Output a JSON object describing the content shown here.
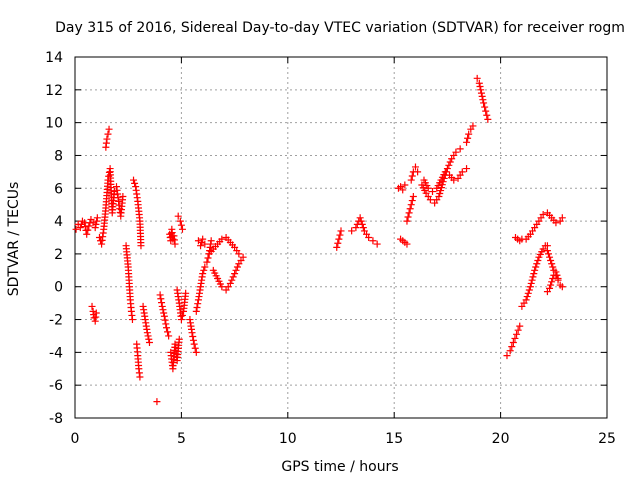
{
  "chart_data": {
    "type": "scatter",
    "title": "Day 315 of 2016, Sidereal Day-to-day VTEC variation (SDTVAR) for receiver rogm",
    "xlabel": "GPS time / hours",
    "ylabel": "SDTVAR / TECUs",
    "xlim": [
      0,
      25
    ],
    "ylim": [
      -8,
      14
    ],
    "xticks": [
      0,
      5,
      10,
      15,
      20,
      25
    ],
    "xtick_labels": [
      "0",
      "5",
      "10",
      "15",
      "20",
      "25"
    ],
    "yticks": [
      -8,
      -6,
      -4,
      -2,
      0,
      2,
      4,
      6,
      8,
      10,
      12,
      14
    ],
    "ytick_labels": [
      "-8",
      "-6",
      "-4",
      "-2",
      "0",
      "2",
      "4",
      "6",
      "8",
      "10",
      "12",
      "14"
    ],
    "grid": true,
    "marker": "plus",
    "color": "#ff0000",
    "series": [
      {
        "name": "SDTVAR",
        "segments": [
          {
            "x": [
              0.05,
              0.15,
              0.25,
              0.35,
              0.45,
              0.55,
              0.65,
              0.75,
              0.85,
              0.95,
              1.05
            ],
            "y": [
              3.5,
              3.8,
              3.6,
              4.0,
              3.9,
              3.2,
              3.7,
              4.1,
              3.9,
              3.6,
              4.2
            ]
          },
          {
            "x": [
              0.8,
              0.85,
              0.9,
              0.95,
              1.0
            ],
            "y": [
              -1.2,
              -1.5,
              -1.9,
              -2.1,
              -1.6
            ]
          },
          {
            "x": [
              1.15,
              1.25,
              1.35,
              1.45,
              1.55,
              1.65,
              1.75,
              1.85,
              1.95,
              2.05,
              2.15,
              2.25
            ],
            "y": [
              3.0,
              2.6,
              3.5,
              4.8,
              6.5,
              7.2,
              4.5,
              5.8,
              6.1,
              5.2,
              4.3,
              5.5
            ]
          },
          {
            "x": [
              1.45,
              1.5,
              1.55,
              1.6
            ],
            "y": [
              8.5,
              9.0,
              9.3,
              9.6
            ]
          },
          {
            "x": [
              2.4,
              2.5,
              2.55,
              2.6,
              2.65,
              2.7
            ],
            "y": [
              2.5,
              1.2,
              0.2,
              -0.8,
              -1.5,
              -2.0
            ]
          },
          {
            "x": [
              2.75,
              2.85,
              2.95,
              3.05,
              3.1
            ],
            "y": [
              6.5,
              6.1,
              5.2,
              4.0,
              2.5
            ]
          },
          {
            "x": [
              2.9,
              2.95,
              3.0,
              3.05
            ],
            "y": [
              -3.5,
              -4.2,
              -5.0,
              -5.5
            ]
          },
          {
            "x": [
              3.2,
              3.3,
              3.4,
              3.5
            ],
            "y": [
              -1.2,
              -2.0,
              -2.8,
              -3.4
            ]
          },
          {
            "x": [
              3.85
            ],
            "y": [
              -7.0
            ]
          },
          {
            "x": [
              4.0,
              4.1,
              4.2,
              4.3,
              4.4
            ],
            "y": [
              -0.5,
              -1.2,
              -1.8,
              -2.5,
              -3.0
            ]
          },
          {
            "x": [
              4.45,
              4.5,
              4.55,
              4.6,
              4.65,
              4.7
            ],
            "y": [
              3.2,
              2.8,
              3.5,
              2.9,
              3.1,
              2.6
            ]
          },
          {
            "x": [
              4.5,
              4.6,
              4.7,
              4.8,
              4.9
            ],
            "y": [
              -4.0,
              -5.0,
              -3.5,
              -4.5,
              -3.2
            ]
          },
          {
            "x": [
              4.85,
              4.95,
              5.05
            ],
            "y": [
              4.3,
              4.0,
              3.5
            ]
          },
          {
            "x": [
              4.8,
              4.9,
              5.0,
              5.1,
              5.2
            ],
            "y": [
              -0.2,
              -1.0,
              -2.0,
              -1.5,
              -0.4
            ]
          },
          {
            "x": [
              5.4,
              5.5,
              5.6,
              5.7
            ],
            "y": [
              -2.0,
              -2.8,
              -3.5,
              -4.0
            ]
          },
          {
            "x": [
              5.7,
              5.8,
              5.9,
              6.0,
              6.1,
              6.2,
              6.3,
              6.4
            ],
            "y": [
              -1.5,
              -0.8,
              0.0,
              0.8,
              1.2,
              1.5,
              2.0,
              2.8
            ]
          },
          {
            "x": [
              5.8,
              5.9,
              6.0,
              6.1
            ],
            "y": [
              2.8,
              2.5,
              2.9,
              2.6
            ]
          },
          {
            "x": [
              6.3,
              6.5,
              6.7,
              6.9,
              7.1,
              7.3,
              7.5,
              7.7
            ],
            "y": [
              2.0,
              2.3,
              2.6,
              2.9,
              3.0,
              2.7,
              2.4,
              2.0
            ]
          },
          {
            "x": [
              6.5,
              6.7,
              6.9,
              7.1,
              7.3,
              7.5,
              7.7,
              7.9
            ],
            "y": [
              1.0,
              0.5,
              0.0,
              -0.2,
              0.2,
              0.8,
              1.4,
              1.8
            ]
          },
          {
            "x": [
              12.3,
              12.4,
              12.5
            ],
            "y": [
              2.4,
              2.9,
              3.4
            ]
          },
          {
            "x": [
              13.0,
              13.2,
              13.4,
              13.6,
              13.8,
              14.0,
              14.2
            ],
            "y": [
              3.4,
              3.6,
              4.2,
              3.4,
              3.0,
              2.8,
              2.6
            ]
          },
          {
            "x": [
              15.2,
              15.3,
              15.4,
              15.5
            ],
            "y": [
              6.0,
              6.1,
              5.9,
              6.2
            ]
          },
          {
            "x": [
              15.3,
              15.4,
              15.5,
              15.6
            ],
            "y": [
              2.9,
              2.8,
              2.7,
              2.6
            ]
          },
          {
            "x": [
              15.6,
              15.7,
              15.8,
              15.9
            ],
            "y": [
              4.0,
              4.5,
              5.0,
              5.5
            ]
          },
          {
            "x": [
              15.8,
              15.9,
              16.0,
              16.1
            ],
            "y": [
              6.5,
              7.0,
              7.3,
              7.0
            ]
          },
          {
            "x": [
              16.3,
              16.5,
              16.7,
              16.9,
              17.1,
              17.3,
              17.5,
              17.7,
              17.9,
              18.1
            ],
            "y": [
              6.2,
              5.7,
              5.3,
              5.1,
              5.5,
              6.4,
              7.2,
              7.8,
              8.2,
              8.4
            ]
          },
          {
            "x": [
              16.4,
              16.6,
              16.8,
              17.0,
              17.2,
              17.4
            ],
            "y": [
              6.5,
              6.0,
              5.8,
              6.0,
              6.5,
              7.0
            ]
          },
          {
            "x": [
              17.6,
              17.8,
              18.0,
              18.2,
              18.4
            ],
            "y": [
              6.8,
              6.5,
              6.6,
              7.0,
              7.2
            ]
          },
          {
            "x": [
              18.4,
              18.5,
              18.6,
              18.7
            ],
            "y": [
              8.8,
              9.3,
              9.6,
              9.8
            ]
          },
          {
            "x": [
              18.9,
              19.0,
              19.1,
              19.2,
              19.3,
              19.4
            ],
            "y": [
              12.7,
              12.4,
              11.8,
              11.2,
              10.7,
              10.2
            ]
          },
          {
            "x": [
              20.3,
              20.45,
              20.6,
              20.75,
              20.9
            ],
            "y": [
              -4.2,
              -3.9,
              -3.4,
              -2.9,
              -2.4
            ]
          },
          {
            "x": [
              20.7,
              20.8,
              20.9,
              21.0
            ],
            "y": [
              3.0,
              2.9,
              2.8,
              2.9
            ]
          },
          {
            "x": [
              21.0,
              21.2,
              21.4,
              21.6,
              21.8,
              22.0,
              22.2
            ],
            "y": [
              -1.2,
              -0.8,
              0.0,
              1.0,
              1.8,
              2.3,
              2.5
            ]
          },
          {
            "x": [
              21.2,
              21.4,
              21.6,
              21.8,
              22.0,
              22.2,
              22.4,
              22.6,
              22.8,
              22.9
            ],
            "y": [
              2.9,
              3.2,
              3.6,
              4.0,
              4.4,
              4.5,
              4.2,
              3.9,
              4.0,
              4.2
            ]
          },
          {
            "x": [
              22.1,
              22.2,
              22.3,
              22.4,
              22.5,
              22.6,
              22.7,
              22.8,
              22.9
            ],
            "y": [
              2.5,
              2.2,
              1.8,
              1.4,
              1.0,
              0.7,
              0.4,
              0.1,
              0.0
            ]
          },
          {
            "x": [
              22.2,
              22.3,
              22.4,
              22.5,
              22.6,
              22.7
            ],
            "y": [
              -0.3,
              -0.1,
              0.3,
              0.7,
              0.9,
              0.5
            ]
          }
        ]
      }
    ]
  }
}
